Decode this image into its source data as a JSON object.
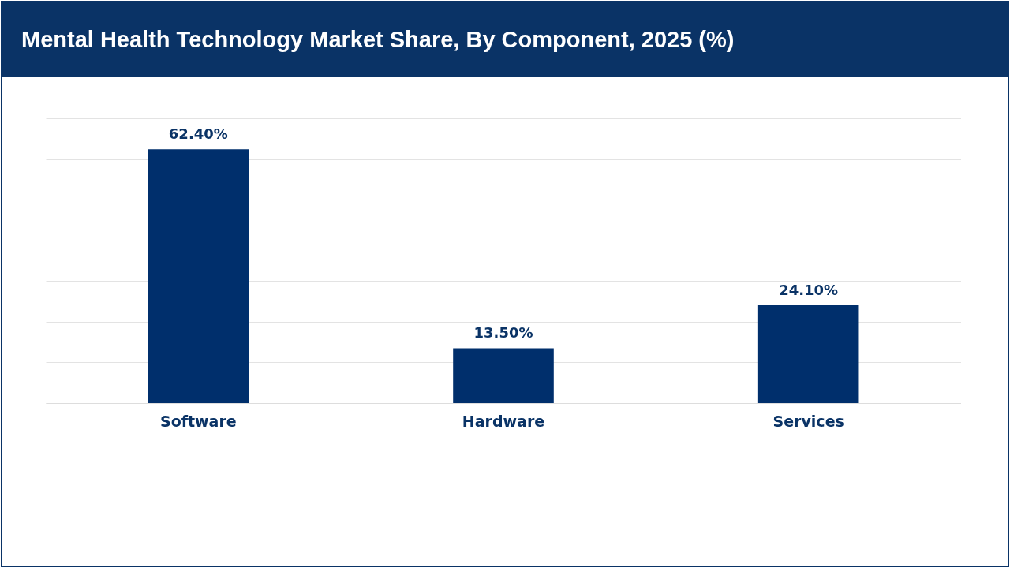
{
  "chart_data": {
    "type": "bar",
    "title": "Mental Health Technology Market Share, By Component, 2025 (%)",
    "categories": [
      "Software",
      "Hardware",
      "Services"
    ],
    "values": [
      62.4,
      13.5,
      24.1
    ],
    "value_labels": [
      "62.40%",
      "13.50%",
      "24.10%"
    ],
    "color": "#002f6c",
    "ylim": [
      0,
      70
    ],
    "yticks": [
      {
        "value": 0,
        "label": null
      },
      {
        "value": 10,
        "label": null
      },
      {
        "value": 20,
        "label": null
      },
      {
        "value": 30,
        "label": null
      },
      {
        "value": 40,
        "label": null
      },
      {
        "value": 50,
        "label": null
      },
      {
        "value": 60,
        "label": null
      },
      {
        "value": 70,
        "label": null
      }
    ],
    "grid": "y",
    "tick_labels": "x"
  }
}
